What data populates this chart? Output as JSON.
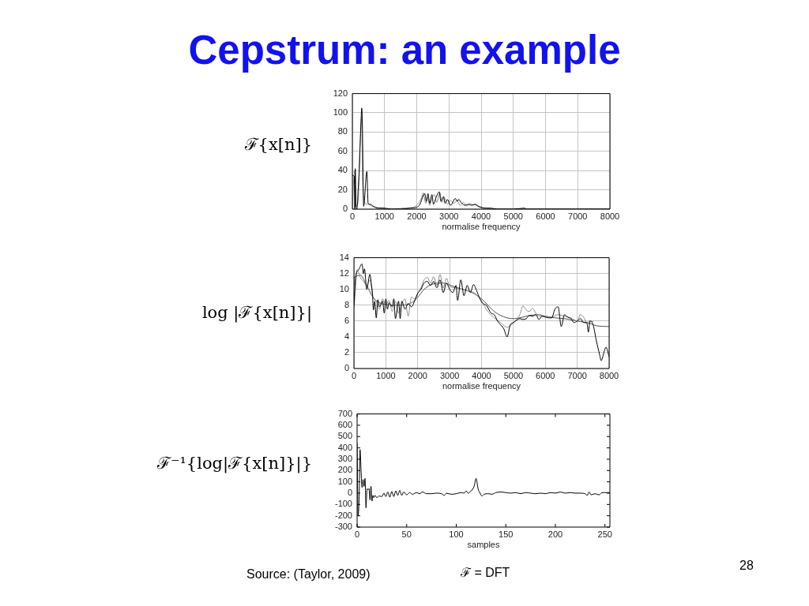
{
  "chart_data": [
    {
      "type": "line",
      "title": "Cepstrum: an example",
      "ylabel": "ℱ{x[n]}",
      "xlabel": "normalise frequency",
      "xlim": [
        0,
        8000
      ],
      "xticks": [
        0,
        1000,
        2000,
        3000,
        4000,
        5000,
        6000,
        7000,
        8000
      ],
      "ylim": [
        0,
        120
      ],
      "yticks": [
        0,
        20,
        40,
        60,
        80,
        100,
        120
      ],
      "grid": true,
      "marker": "none",
      "series": [
        {
          "color": "#000000",
          "x": [
            0,
            60,
            75,
            90,
            110,
            140,
            180,
            220,
            250,
            280,
            290,
            310,
            330,
            350,
            450,
            490,
            560,
            650,
            800,
            1000,
            1200,
            1500,
            1800,
            2000,
            2100,
            2200,
            2250,
            2300,
            2350,
            2400,
            2470,
            2520,
            2600,
            2700,
            2750,
            2830,
            2880,
            2950,
            3050,
            3200,
            3260,
            3300,
            3400,
            3500,
            3600,
            3700,
            3800,
            3900,
            4000,
            4100,
            4300,
            4500,
            5000,
            5350,
            5400,
            6000,
            7000,
            8000
          ],
          "values": [
            35,
            34,
            0,
            42,
            5,
            0,
            20,
            45,
            75,
            100,
            105,
            90,
            40,
            3,
            39,
            6,
            5,
            3,
            1,
            1,
            0,
            0,
            1,
            2,
            5,
            14,
            16,
            8,
            16,
            6,
            15,
            5,
            12,
            18,
            8,
            13,
            6,
            10,
            4,
            11,
            8,
            10,
            6,
            4,
            5,
            4,
            5,
            3,
            2,
            1,
            1,
            0,
            0,
            1,
            0,
            0,
            0,
            0
          ]
        },
        {
          "color": "#8c8c8c",
          "x": [
            0,
            40,
            80,
            120,
            180,
            230,
            260,
            290,
            320,
            360,
            400,
            500,
            600,
            700,
            900,
            1200,
            1600,
            1900,
            2050,
            2150,
            2200,
            2280,
            2340,
            2400,
            2480,
            2550,
            2620,
            2720,
            2780,
            2860,
            2950,
            3050,
            3150,
            3250,
            3350,
            3450,
            3550,
            3650,
            3750,
            3850,
            3950,
            4100,
            4400,
            5000,
            8000
          ],
          "values": [
            0,
            30,
            40,
            3,
            8,
            60,
            80,
            95,
            30,
            10,
            6,
            5,
            3,
            2,
            1,
            0,
            1,
            2,
            6,
            12,
            17,
            6,
            13,
            4,
            12,
            15,
            7,
            17,
            7,
            12,
            5,
            9,
            6,
            9,
            4,
            7,
            3,
            6,
            4,
            5,
            2,
            1,
            0,
            0,
            0
          ]
        }
      ]
    },
    {
      "type": "line",
      "ylabel": "log |ℱ{x[n]}|",
      "xlabel": "normalise frequency",
      "xlim": [
        0,
        8000
      ],
      "xticks": [
        0,
        1000,
        2000,
        3000,
        4000,
        5000,
        6000,
        7000,
        8000
      ],
      "ylim": [
        0,
        14
      ],
      "yticks": [
        0,
        2,
        4,
        6,
        8,
        10,
        12,
        14
      ],
      "grid": true,
      "marker": "none",
      "series": [
        {
          "color": "#000000",
          "x": [
            0,
            50,
            150,
            250,
            300,
            330,
            400,
            500,
            550,
            580,
            610,
            650,
            700,
            750,
            800,
            900,
            950,
            1000,
            1050,
            1100,
            1200,
            1250,
            1300,
            1400,
            1450,
            1500,
            1600,
            1700,
            1800,
            1900,
            2000,
            2100,
            2200,
            2300,
            2400,
            2500,
            2600,
            2700,
            2800,
            2900,
            3000,
            3100,
            3200,
            3250,
            3350,
            3450,
            3550,
            3650,
            3750,
            3850,
            3950,
            4050,
            4150,
            4300,
            4400,
            4500,
            4600,
            4700,
            4800,
            4900,
            5000,
            5100,
            5200,
            5300,
            5400,
            5500,
            5600,
            5700,
            5800,
            5900,
            6000,
            6100,
            6200,
            6300,
            6400,
            6500,
            6600,
            6700,
            6800,
            6900,
            7000,
            7100,
            7200,
            7300,
            7350,
            7400,
            7500,
            7600,
            7700,
            7750,
            7850,
            7900,
            8000
          ],
          "values": [
            8,
            11.5,
            12.5,
            13.2,
            12,
            12.6,
            10,
            11.9,
            10.5,
            9.5,
            7.4,
            8.5,
            6.4,
            8.7,
            7.8,
            8.5,
            7,
            8.8,
            7.5,
            8.3,
            7.8,
            8.8,
            6.3,
            8.5,
            6.3,
            8.5,
            7.5,
            8.2,
            7.8,
            8.5,
            9.5,
            10,
            10.8,
            11,
            10.5,
            11,
            10.2,
            11.2,
            9.6,
            10.8,
            10,
            9.6,
            10.5,
            8.6,
            11.2,
            9.2,
            10.5,
            9.6,
            10.6,
            9.8,
            8.8,
            8.2,
            8,
            7,
            6.8,
            6,
            5.5,
            5,
            4,
            5.5,
            5.8,
            6.1,
            6.3,
            6.2,
            6.3,
            6.7,
            6.6,
            6.8,
            6.2,
            6.6,
            6.5,
            6.4,
            6.4,
            7.5,
            7.8,
            5.3,
            6.8,
            6.5,
            6.3,
            5.8,
            6,
            6.3,
            5.8,
            5.8,
            4.6,
            6,
            5.5,
            3.5,
            1.8,
            1,
            2.2,
            2.7,
            1.5
          ]
        },
        {
          "color": "#8c8c8c",
          "x": [
            0,
            50,
            100,
            200,
            300,
            400,
            500,
            600,
            700,
            800,
            900,
            1000,
            1100,
            1200,
            1300,
            1400,
            1500,
            1600,
            1700,
            1800,
            1900,
            2000,
            2100,
            2200,
            2300,
            2400,
            2500,
            2600,
            2700,
            2800,
            2900,
            3000,
            3200,
            3400,
            3600,
            3800,
            4000,
            4200,
            4400,
            4600,
            4800,
            5000,
            5200,
            5300,
            5400,
            5500,
            5600,
            5700,
            5800,
            6000,
            6200,
            6400,
            6600,
            6800,
            7000,
            7100,
            7200,
            7300,
            7400,
            7500
          ],
          "values": [
            7.6,
            10,
            12.5,
            11.5,
            11,
            10.5,
            11.2,
            9,
            8.5,
            7.5,
            8.8,
            8,
            8.6,
            7.2,
            8.5,
            7,
            8.2,
            8.8,
            6.6,
            9,
            8.8,
            9.5,
            10.2,
            11.2,
            11.5,
            10.8,
            11.6,
            10.5,
            11.9,
            10.2,
            11.4,
            10.4,
            10.2,
            10,
            9.8,
            9.5,
            8.5,
            7.2,
            6.4,
            5.8,
            5.2,
            5.8,
            6.8,
            7.9,
            7.4,
            7.2,
            7.6,
            7,
            6.6,
            6.6,
            6.5,
            6.8,
            6.6,
            6.4,
            6,
            6.8,
            6.5,
            5.8,
            6,
            5.9
          ]
        },
        {
          "color": "#505050",
          "x": [
            0,
            200,
            400,
            600,
            800,
            1000,
            1200,
            1500,
            1800,
            2000,
            2200,
            2500,
            2800,
            3100,
            3400,
            3700,
            4000,
            4200,
            4400,
            4600,
            4800,
            5000,
            5200,
            5500,
            5800,
            6000,
            6300,
            6600,
            7000,
            7400,
            7600,
            8000
          ],
          "values": [
            11.5,
            11.8,
            10.5,
            9,
            8.3,
            8.1,
            8,
            8,
            8.3,
            9,
            10,
            10.7,
            10.8,
            10.4,
            10,
            9.6,
            8.8,
            8,
            7.2,
            6.7,
            6.4,
            6.3,
            6.4,
            6.7,
            6.8,
            6.6,
            6.4,
            6.3,
            6,
            5.7,
            5.4,
            5.3
          ]
        }
      ]
    },
    {
      "type": "line",
      "ylabel": "ℱ⁻¹{log|ℱ{x[n]}|}",
      "xlabel": "samples",
      "xlim": [
        0,
        255
      ],
      "xticks": [
        0,
        50,
        100,
        150,
        200,
        250
      ],
      "ylim": [
        -300,
        700
      ],
      "yticks": [
        -300,
        -200,
        -100,
        0,
        100,
        200,
        300,
        400,
        500,
        600,
        700
      ],
      "marker": "none",
      "annotations": [
        "Source: (Taylor, 2009)",
        "ℱ = DFT",
        "28"
      ],
      "series": [
        {
          "color": "#000000",
          "x": [
            0,
            1,
            2,
            3,
            4,
            5,
            6,
            7,
            8,
            9,
            10,
            11,
            12,
            13,
            14,
            15,
            16,
            17,
            18,
            20,
            22,
            25,
            27,
            29,
            31,
            33,
            35,
            37,
            39,
            41,
            43,
            45,
            47,
            50,
            53,
            56,
            60,
            63,
            66,
            70,
            75,
            80,
            85,
            88,
            90,
            95,
            100,
            105,
            108,
            110,
            112,
            115,
            118,
            120,
            122,
            124,
            126,
            128,
            132,
            136,
            140,
            145,
            150,
            155,
            160,
            165,
            170,
            175,
            180,
            185,
            190,
            195,
            200,
            205,
            210,
            215,
            220,
            225,
            230,
            232,
            234,
            236,
            240,
            244,
            247,
            250,
            255
          ],
          "values": [
            440,
            -200,
            -50,
            385,
            200,
            50,
            120,
            60,
            130,
            -130,
            40,
            30,
            40,
            -60,
            60,
            -70,
            -20,
            -40,
            -20,
            -40,
            -25,
            -30,
            0,
            -30,
            10,
            -35,
            15,
            -30,
            20,
            -20,
            25,
            -20,
            10,
            -15,
            5,
            -10,
            5,
            -5,
            10,
            -5,
            -5,
            0,
            -5,
            -20,
            0,
            -10,
            -5,
            5,
            0,
            20,
            0,
            20,
            60,
            130,
            40,
            0,
            -25,
            -10,
            -5,
            -10,
            5,
            10,
            5,
            0,
            5,
            -5,
            5,
            0,
            -5,
            0,
            -5,
            5,
            0,
            10,
            0,
            5,
            0,
            0,
            -5,
            -20,
            10,
            -15,
            -5,
            -15,
            5,
            5,
            5
          ]
        }
      ]
    }
  ]
}
